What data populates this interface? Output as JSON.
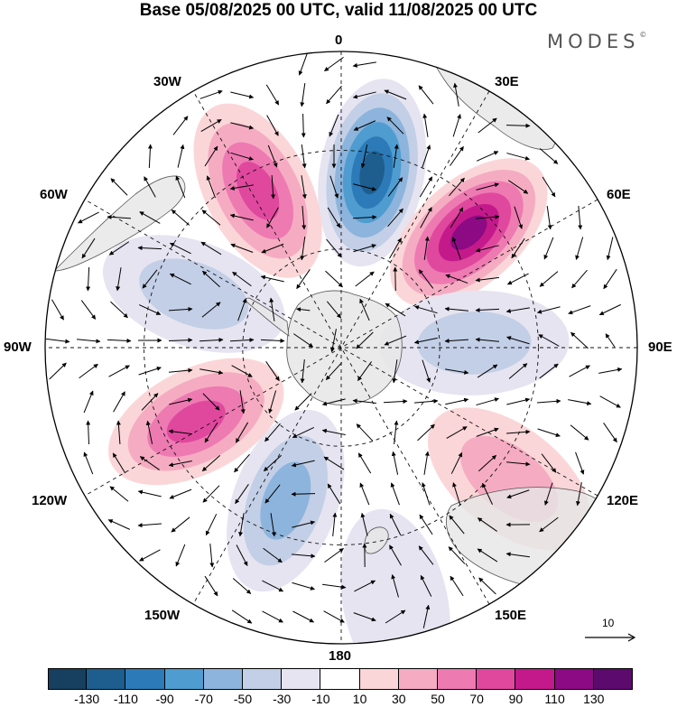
{
  "title": "Base 05/08/2025 00 UTC, valid 11/08/2025 00 UTC",
  "brand": "MODES",
  "brand_mark": "©",
  "longitude_labels": {
    "lon_0": "0",
    "lon_30e": "30E",
    "lon_60e": "60E",
    "lon_90e": "90E",
    "lon_120e": "120E",
    "lon_150e": "150E",
    "lon_180": "180",
    "lon_150w": "150W",
    "lon_120w": "120W",
    "lon_90w": "90W",
    "lon_60w": "60W",
    "lon_30w": "30W"
  },
  "reference_vector": {
    "label": "10",
    "magnitude": 10
  },
  "colorbar": {
    "colors": [
      "#173f5f",
      "#1d5e8e",
      "#2c7ab7",
      "#4f9cd0",
      "#8db4dc",
      "#c2cfe6",
      "#e6e4f1",
      "#ffffff",
      "#fbd6d8",
      "#f5acc2",
      "#ee7ab2",
      "#e0489e",
      "#c4198b",
      "#8c0a83",
      "#5c0a6e"
    ],
    "tick_labels": [
      "-130",
      "-110",
      "-90",
      "-70",
      "-50",
      "-30",
      "-10",
      "10",
      "30",
      "50",
      "70",
      "90",
      "110",
      "130"
    ]
  },
  "anomaly_centers": [
    {
      "name": "negative-center-0",
      "lon": 10,
      "colat": 0.6,
      "value": -130
    },
    {
      "name": "positive-center-30e",
      "lon": 48,
      "colat": 0.58,
      "value": 120
    },
    {
      "name": "positive-center-30w",
      "lon": -28,
      "colat": 0.6,
      "value": 90
    },
    {
      "name": "negative-center-60w",
      "lon": -70,
      "colat": 0.53,
      "value": -55
    },
    {
      "name": "negative-center-90e",
      "lon": 88,
      "colat": 0.45,
      "value": -45
    },
    {
      "name": "positive-center-120w",
      "lon": -117,
      "colat": 0.55,
      "value": 85
    },
    {
      "name": "negative-center-150w",
      "lon": -160,
      "colat": 0.55,
      "value": -75
    },
    {
      "name": "positive-center-120e",
      "lon": 128,
      "colat": 0.72,
      "value": 50
    },
    {
      "name": "negative-center-150e",
      "lon": 168,
      "colat": 0.88,
      "value": -35
    }
  ]
}
